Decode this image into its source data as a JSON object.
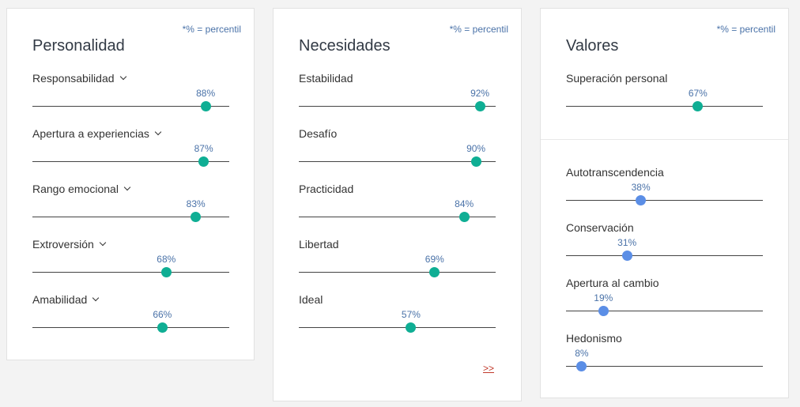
{
  "colors": {
    "teal": "#0fae94",
    "blue": "#5b8ee6",
    "note": "#4a72a8",
    "link": "#c0392b"
  },
  "percentile_note": "*% = percentil",
  "personalidad": {
    "title": "Personalidad",
    "traits": [
      {
        "label": "Responsabilidad",
        "pct": "88%",
        "value": 0.88
      },
      {
        "label": "Apertura a experiencias",
        "pct": "87%",
        "value": 0.87
      },
      {
        "label": "Rango emocional",
        "pct": "83%",
        "value": 0.83
      },
      {
        "label": "Extroversión",
        "pct": "68%",
        "value": 0.68
      },
      {
        "label": "Amabilidad",
        "pct": "66%",
        "value": 0.66
      }
    ]
  },
  "necesidades": {
    "title": "Necesidades",
    "more_link": ">>",
    "traits": [
      {
        "label": "Estabilidad",
        "pct": "92%",
        "value": 0.92
      },
      {
        "label": "Desafío",
        "pct": "90%",
        "value": 0.9
      },
      {
        "label": "Practicidad",
        "pct": "84%",
        "value": 0.84
      },
      {
        "label": "Libertad",
        "pct": "69%",
        "value": 0.69
      },
      {
        "label": "Ideal",
        "pct": "57%",
        "value": 0.57
      }
    ]
  },
  "valores": {
    "title": "Valores",
    "primary": [
      {
        "label": "Superación personal",
        "pct": "67%",
        "value": 0.67
      }
    ],
    "secondary": [
      {
        "label": "Autotranscendencia",
        "pct": "38%",
        "value": 0.38
      },
      {
        "label": "Conservación",
        "pct": "31%",
        "value": 0.31
      },
      {
        "label": "Apertura al cambio",
        "pct": "19%",
        "value": 0.19
      },
      {
        "label": "Hedonismo",
        "pct": "8%",
        "value": 0.08
      }
    ]
  }
}
